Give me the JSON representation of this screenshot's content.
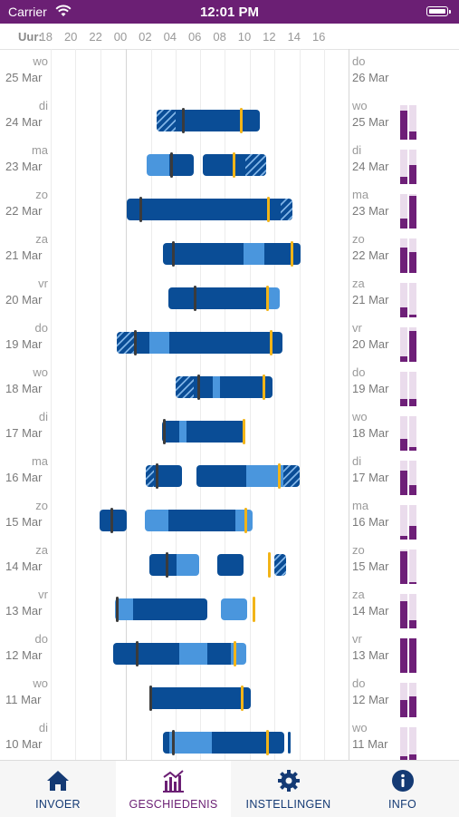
{
  "status_bar": {
    "carrier": "Carrier",
    "time": "12:01 PM"
  },
  "header": {
    "label": "Uur:",
    "hours": [
      "18",
      "20",
      "22",
      "00",
      "02",
      "04",
      "06",
      "08",
      "10",
      "12",
      "14",
      "16"
    ]
  },
  "rows": [
    {
      "left_day": "wo",
      "left_date": "25 Mar",
      "right_day": "do",
      "right_date": "26 Mar",
      "bars": [],
      "sleep_marks": [],
      "wake_marks": [],
      "mini": null
    },
    {
      "left_day": "di",
      "left_date": "24 Mar",
      "right_day": "wo",
      "right_date": "25 Mar",
      "bars": [
        {
          "start": 2.5,
          "end": 10.8,
          "segments": [
            {
              "type": "hatch",
              "start": 2.5,
              "end": 4.0
            },
            {
              "type": "dark",
              "start": 4.0,
              "end": 10.8
            }
          ]
        }
      ],
      "sleep_marks": [
        4.6
      ],
      "wake_marks": [
        9.3
      ],
      "mini": [
        0.85,
        0.25
      ]
    },
    {
      "left_day": "ma",
      "left_date": "23 Mar",
      "right_day": "di",
      "right_date": "24 Mar",
      "bars": [
        {
          "start": 1.7,
          "end": 5.5,
          "segments": [
            {
              "type": "light",
              "start": 1.7,
              "end": 3.5
            },
            {
              "type": "dark",
              "start": 3.5,
              "end": 5.5
            }
          ]
        },
        {
          "start": 6.2,
          "end": 11.3,
          "segments": [
            {
              "type": "dark",
              "start": 6.2,
              "end": 9.6
            },
            {
              "type": "hatch",
              "start": 9.6,
              "end": 11.3
            }
          ]
        }
      ],
      "sleep_marks": [
        3.7
      ],
      "wake_marks": [
        8.7
      ],
      "mini": [
        0.2,
        0.55
      ]
    },
    {
      "left_day": "zo",
      "left_date": "22 Mar",
      "right_day": "ma",
      "right_date": "23 Mar",
      "bars": [
        {
          "start": 0.1,
          "end": 13.4,
          "segments": [
            {
              "type": "dark",
              "start": 0.1,
              "end": 12.5
            },
            {
              "type": "hatch",
              "start": 12.5,
              "end": 13.4
            }
          ]
        }
      ],
      "sleep_marks": [
        1.2
      ],
      "wake_marks": [
        11.5
      ],
      "mini": [
        0.3,
        0.95
      ]
    },
    {
      "left_day": "za",
      "left_date": "21 Mar",
      "right_day": "zo",
      "right_date": "22 Mar",
      "bars": [
        {
          "start": 3.0,
          "end": 14.1,
          "segments": [
            {
              "type": "dark",
              "start": 3.0,
              "end": 9.5
            },
            {
              "type": "light",
              "start": 9.5,
              "end": 11.2
            },
            {
              "type": "dark",
              "start": 11.2,
              "end": 14.1
            }
          ]
        }
      ],
      "sleep_marks": [
        3.8
      ],
      "wake_marks": [
        13.4
      ],
      "mini": [
        0.75,
        0.6
      ]
    },
    {
      "left_day": "vr",
      "left_date": "20 Mar",
      "right_day": "za",
      "right_date": "21 Mar",
      "bars": [
        {
          "start": 3.4,
          "end": 12.4,
          "segments": [
            {
              "type": "dark",
              "start": 3.4,
              "end": 11.5
            },
            {
              "type": "light",
              "start": 11.5,
              "end": 12.4
            }
          ]
        }
      ],
      "sleep_marks": [
        5.6
      ],
      "wake_marks": [
        11.4
      ],
      "mini": [
        0.3,
        0.08
      ]
    },
    {
      "left_day": "do",
      "left_date": "19 Mar",
      "right_day": "vr",
      "right_date": "20 Mar",
      "bars": [
        {
          "start": -0.7,
          "end": 12.6,
          "segments": [
            {
              "type": "hatch",
              "start": -0.7,
              "end": 0.7
            },
            {
              "type": "dark",
              "start": 0.7,
              "end": 1.9
            },
            {
              "type": "light",
              "start": 1.9,
              "end": 3.5
            },
            {
              "type": "dark",
              "start": 3.5,
              "end": 12.6
            }
          ]
        }
      ],
      "sleep_marks": [
        0.8
      ],
      "wake_marks": [
        11.7
      ],
      "mini": [
        0.15,
        0.9
      ]
    },
    {
      "left_day": "wo",
      "left_date": "18 Mar",
      "right_day": "do",
      "right_date": "19 Mar",
      "bars": [
        {
          "start": 4.0,
          "end": 11.8,
          "segments": [
            {
              "type": "hatch",
              "start": 4.0,
              "end": 5.5
            },
            {
              "type": "dark",
              "start": 5.5,
              "end": 7.0
            },
            {
              "type": "light",
              "start": 7.0,
              "end": 7.6
            },
            {
              "type": "dark",
              "start": 7.6,
              "end": 11.8
            }
          ]
        }
      ],
      "sleep_marks": [
        5.9
      ],
      "wake_marks": [
        11.1
      ],
      "mini": [
        0.2,
        0.2
      ]
    },
    {
      "left_day": "di",
      "left_date": "17 Mar",
      "right_day": "wo",
      "right_date": "18 Mar",
      "bars": [
        {
          "start": 2.9,
          "end": 9.6,
          "segments": [
            {
              "type": "dark",
              "start": 2.9,
              "end": 4.3
            },
            {
              "type": "light",
              "start": 4.3,
              "end": 4.9
            },
            {
              "type": "dark",
              "start": 4.9,
              "end": 9.6
            }
          ]
        }
      ],
      "sleep_marks": [
        3.1
      ],
      "wake_marks": [
        9.5
      ],
      "mini": [
        0.35,
        0.1
      ]
    },
    {
      "left_day": "ma",
      "left_date": "16 Mar",
      "right_day": "di",
      "right_date": "17 Mar",
      "bars": [
        {
          "start": 1.6,
          "end": 4.5,
          "segments": [
            {
              "type": "hatch",
              "start": 1.6,
              "end": 2.3
            },
            {
              "type": "dark",
              "start": 2.3,
              "end": 4.5
            }
          ]
        },
        {
          "start": 5.7,
          "end": 14.0,
          "segments": [
            {
              "type": "dark",
              "start": 5.7,
              "end": 9.7
            },
            {
              "type": "light",
              "start": 9.7,
              "end": 12.7
            },
            {
              "type": "hatch",
              "start": 12.7,
              "end": 14.0
            }
          ]
        }
      ],
      "sleep_marks": [
        2.5
      ],
      "wake_marks": [
        12.4
      ],
      "mini": [
        0.7,
        0.3
      ]
    },
    {
      "left_day": "zo",
      "left_date": "15 Mar",
      "right_day": "ma",
      "right_date": "16 Mar",
      "bars": [
        {
          "start": -2.1,
          "end": 0.1,
          "segments": [
            {
              "type": "dark",
              "start": -2.1,
              "end": 0.1
            }
          ]
        },
        {
          "start": 1.5,
          "end": 10.2,
          "segments": [
            {
              "type": "light",
              "start": 1.5,
              "end": 3.4
            },
            {
              "type": "dark",
              "start": 3.4,
              "end": 8.8
            },
            {
              "type": "light",
              "start": 8.8,
              "end": 10.2
            }
          ]
        }
      ],
      "sleep_marks": [
        -1.1
      ],
      "wake_marks": [
        9.7
      ],
      "mini": [
        0.1,
        0.4
      ]
    },
    {
      "left_day": "za",
      "left_date": "14 Mar",
      "right_day": "zo",
      "right_date": "15 Mar",
      "bars": [
        {
          "start": 1.9,
          "end": 5.9,
          "segments": [
            {
              "type": "dark",
              "start": 1.9,
              "end": 4.1
            },
            {
              "type": "light",
              "start": 4.1,
              "end": 5.9
            }
          ]
        },
        {
          "start": 7.4,
          "end": 9.5,
          "segments": [
            {
              "type": "dark",
              "start": 7.4,
              "end": 9.5
            }
          ]
        },
        {
          "start": 12.0,
          "end": 12.9,
          "segments": [
            {
              "type": "hatch",
              "start": 12.0,
              "end": 12.9
            }
          ]
        }
      ],
      "sleep_marks": [
        3.3
      ],
      "wake_marks": [
        11.6
      ],
      "mini": [
        0.95,
        0.05
      ]
    },
    {
      "left_day": "vr",
      "left_date": "13 Mar",
      "right_day": "za",
      "right_date": "14 Mar",
      "bars": [
        {
          "start": -0.9,
          "end": 6.6,
          "segments": [
            {
              "type": "light",
              "start": -0.9,
              "end": 0.6
            },
            {
              "type": "dark",
              "start": 0.6,
              "end": 6.6
            }
          ]
        },
        {
          "start": 7.7,
          "end": 9.8,
          "segments": [
            {
              "type": "light",
              "start": 7.7,
              "end": 9.8
            }
          ]
        }
      ],
      "sleep_marks": [
        -0.7
      ],
      "wake_marks": [
        10.3
      ],
      "mini": [
        0.8,
        0.25
      ]
    },
    {
      "left_day": "do",
      "left_date": "12 Mar",
      "right_day": "vr",
      "right_date": "13 Mar",
      "bars": [
        {
          "start": -1.0,
          "end": 9.7,
          "segments": [
            {
              "type": "dark",
              "start": -1.0,
              "end": 4.3
            },
            {
              "type": "light",
              "start": 4.3,
              "end": 6.6
            },
            {
              "type": "dark",
              "start": 6.6,
              "end": 8.5
            },
            {
              "type": "light",
              "start": 8.5,
              "end": 9.7
            }
          ]
        }
      ],
      "sleep_marks": [
        0.9
      ],
      "wake_marks": [
        8.8
      ],
      "mini": [
        1.0,
        1.0
      ]
    },
    {
      "left_day": "wo",
      "left_date": "11 Mar",
      "right_day": "do",
      "right_date": "12 Mar",
      "bars": [
        {
          "start": 1.9,
          "end": 10.1,
          "segments": [
            {
              "type": "dark",
              "start": 1.9,
              "end": 10.1
            }
          ]
        }
      ],
      "sleep_marks": [
        2.0
      ],
      "wake_marks": [
        9.4
      ],
      "mini": [
        0.5,
        0.6
      ]
    },
    {
      "left_day": "di",
      "left_date": "10 Mar",
      "right_day": "wo",
      "right_date": "11 Mar",
      "bars": [
        {
          "start": 3.0,
          "end": 12.8,
          "segments": [
            {
              "type": "dark",
              "start": 3.0,
              "end": 3.5
            },
            {
              "type": "light",
              "start": 3.5,
              "end": 6.9
            },
            {
              "type": "dark",
              "start": 6.9,
              "end": 12.8
            }
          ]
        },
        {
          "start": 13.1,
          "end": 13.3,
          "segments": [
            {
              "type": "dark",
              "start": 13.1,
              "end": 13.3
            }
          ]
        }
      ],
      "sleep_marks": [
        3.8
      ],
      "wake_marks": [
        11.4
      ],
      "mini": [
        0.15,
        0.2
      ]
    }
  ],
  "tabs": [
    {
      "id": "invoer",
      "label": "INVOER",
      "icon": "home-icon",
      "active": false
    },
    {
      "id": "geschiedenis",
      "label": "GESCHIEDENIS",
      "icon": "chart-icon",
      "active": true
    },
    {
      "id": "instellingen",
      "label": "INSTELLINGEN",
      "icon": "gear-icon",
      "active": false
    },
    {
      "id": "info",
      "label": "INFO",
      "icon": "info-icon",
      "active": false
    }
  ],
  "colors": {
    "header": "#6b1f74",
    "sleep_dark": "#0a4d96",
    "sleep_light": "#4a96dd",
    "wake_marker": "#f2b418",
    "sleep_marker": "#3b3b3b",
    "tab_text": "#143a74",
    "tab_active": "#6b1f74"
  }
}
